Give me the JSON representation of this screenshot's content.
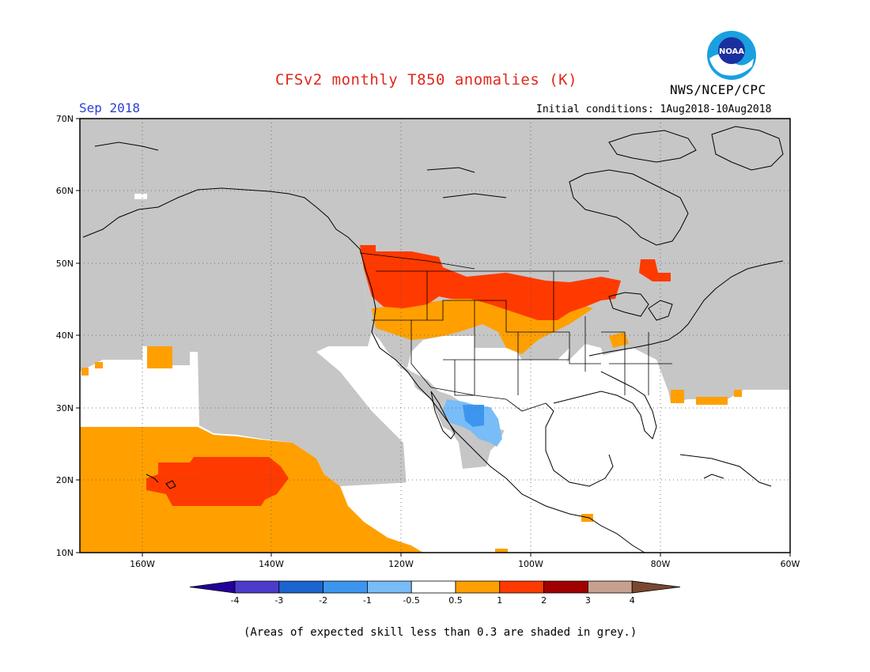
{
  "title": "CFSv2 monthly T850 anomalies (K)",
  "valid_month": "Sep 2018",
  "initial_conditions": "Initial conditions: 1Aug2018-10Aug2018",
  "agency": "NWS/NCEP/CPC",
  "logo": {
    "name": "noaa-logo",
    "text": "NOAA"
  },
  "lat_ticks": [
    "70N",
    "60N",
    "50N",
    "40N",
    "30N",
    "20N",
    "10N"
  ],
  "lon_ticks": [
    "160W",
    "140W",
    "120W",
    "100W",
    "80W",
    "60W"
  ],
  "colorbar": {
    "labels": [
      "-4",
      "-3",
      "-2",
      "-1",
      "-0.5",
      "0.5",
      "1",
      "2",
      "3",
      "4"
    ],
    "colors": [
      "#24009a",
      "#4b3ccc",
      "#1c64d0",
      "#3c96f0",
      "#78bcf8",
      "#ffffff",
      "#ffa000",
      "#ff3a00",
      "#a00000",
      "#c8a090",
      "#784830"
    ]
  },
  "skill_note": "(Areas of expected skill less than 0.3 are shaded in grey.)",
  "colors": {
    "low_skill": "#c6c6c6",
    "positive_0_5_to_1": "#ffa000",
    "positive_1_to_2": "#ff3a00",
    "negative_0_5_to_1": "#78bcf8",
    "negative_1_to_2": "#3c96f0"
  }
}
